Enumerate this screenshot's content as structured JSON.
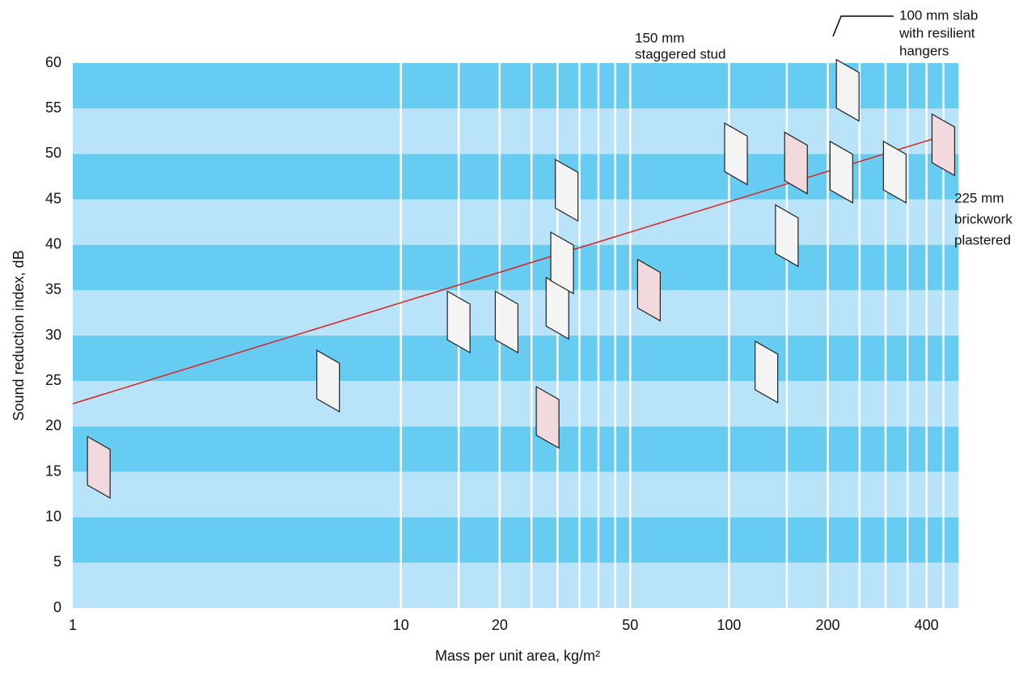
{
  "chart_data": {
    "type": "line",
    "x_label": "Mass per unit area, kg/m²",
    "y_label": "Sound reduction index, dB",
    "log_x": true,
    "xlim": [
      1,
      500
    ],
    "ylim": [
      0,
      60
    ],
    "xticks": [
      1,
      10,
      20,
      50,
      100,
      200,
      400
    ],
    "xgrid": [
      10,
      15,
      20,
      25,
      30,
      35,
      40,
      45,
      50,
      100,
      150,
      200,
      250,
      300,
      350,
      400,
      450
    ],
    "yticks": [
      0,
      5,
      10,
      15,
      20,
      25,
      30,
      35,
      40,
      45,
      50,
      55,
      60
    ],
    "band_colors": [
      "#b8e3f8",
      "#66ccf2"
    ],
    "series": [
      {
        "color": "#e02020",
        "x": [
          1,
          450
        ],
        "values": [
          22.5,
          52
        ]
      }
    ],
    "constructions": {
      "x": [
        1.2,
        6,
        15,
        21,
        28,
        30,
        31,
        32,
        57,
        105,
        130,
        150,
        160,
        220,
        230,
        320,
        450
      ],
      "values": [
        15.5,
        25,
        31.5,
        31.5,
        21,
        33,
        38,
        46,
        35,
        50,
        26,
        41,
        49,
        48,
        57,
        48,
        51
      ]
    },
    "annotations": [
      "150 mm",
      "staggered stud",
      "100 mm slab",
      "with resilient",
      "hangers",
      "225 mm",
      "brickwork",
      "plastered"
    ]
  }
}
